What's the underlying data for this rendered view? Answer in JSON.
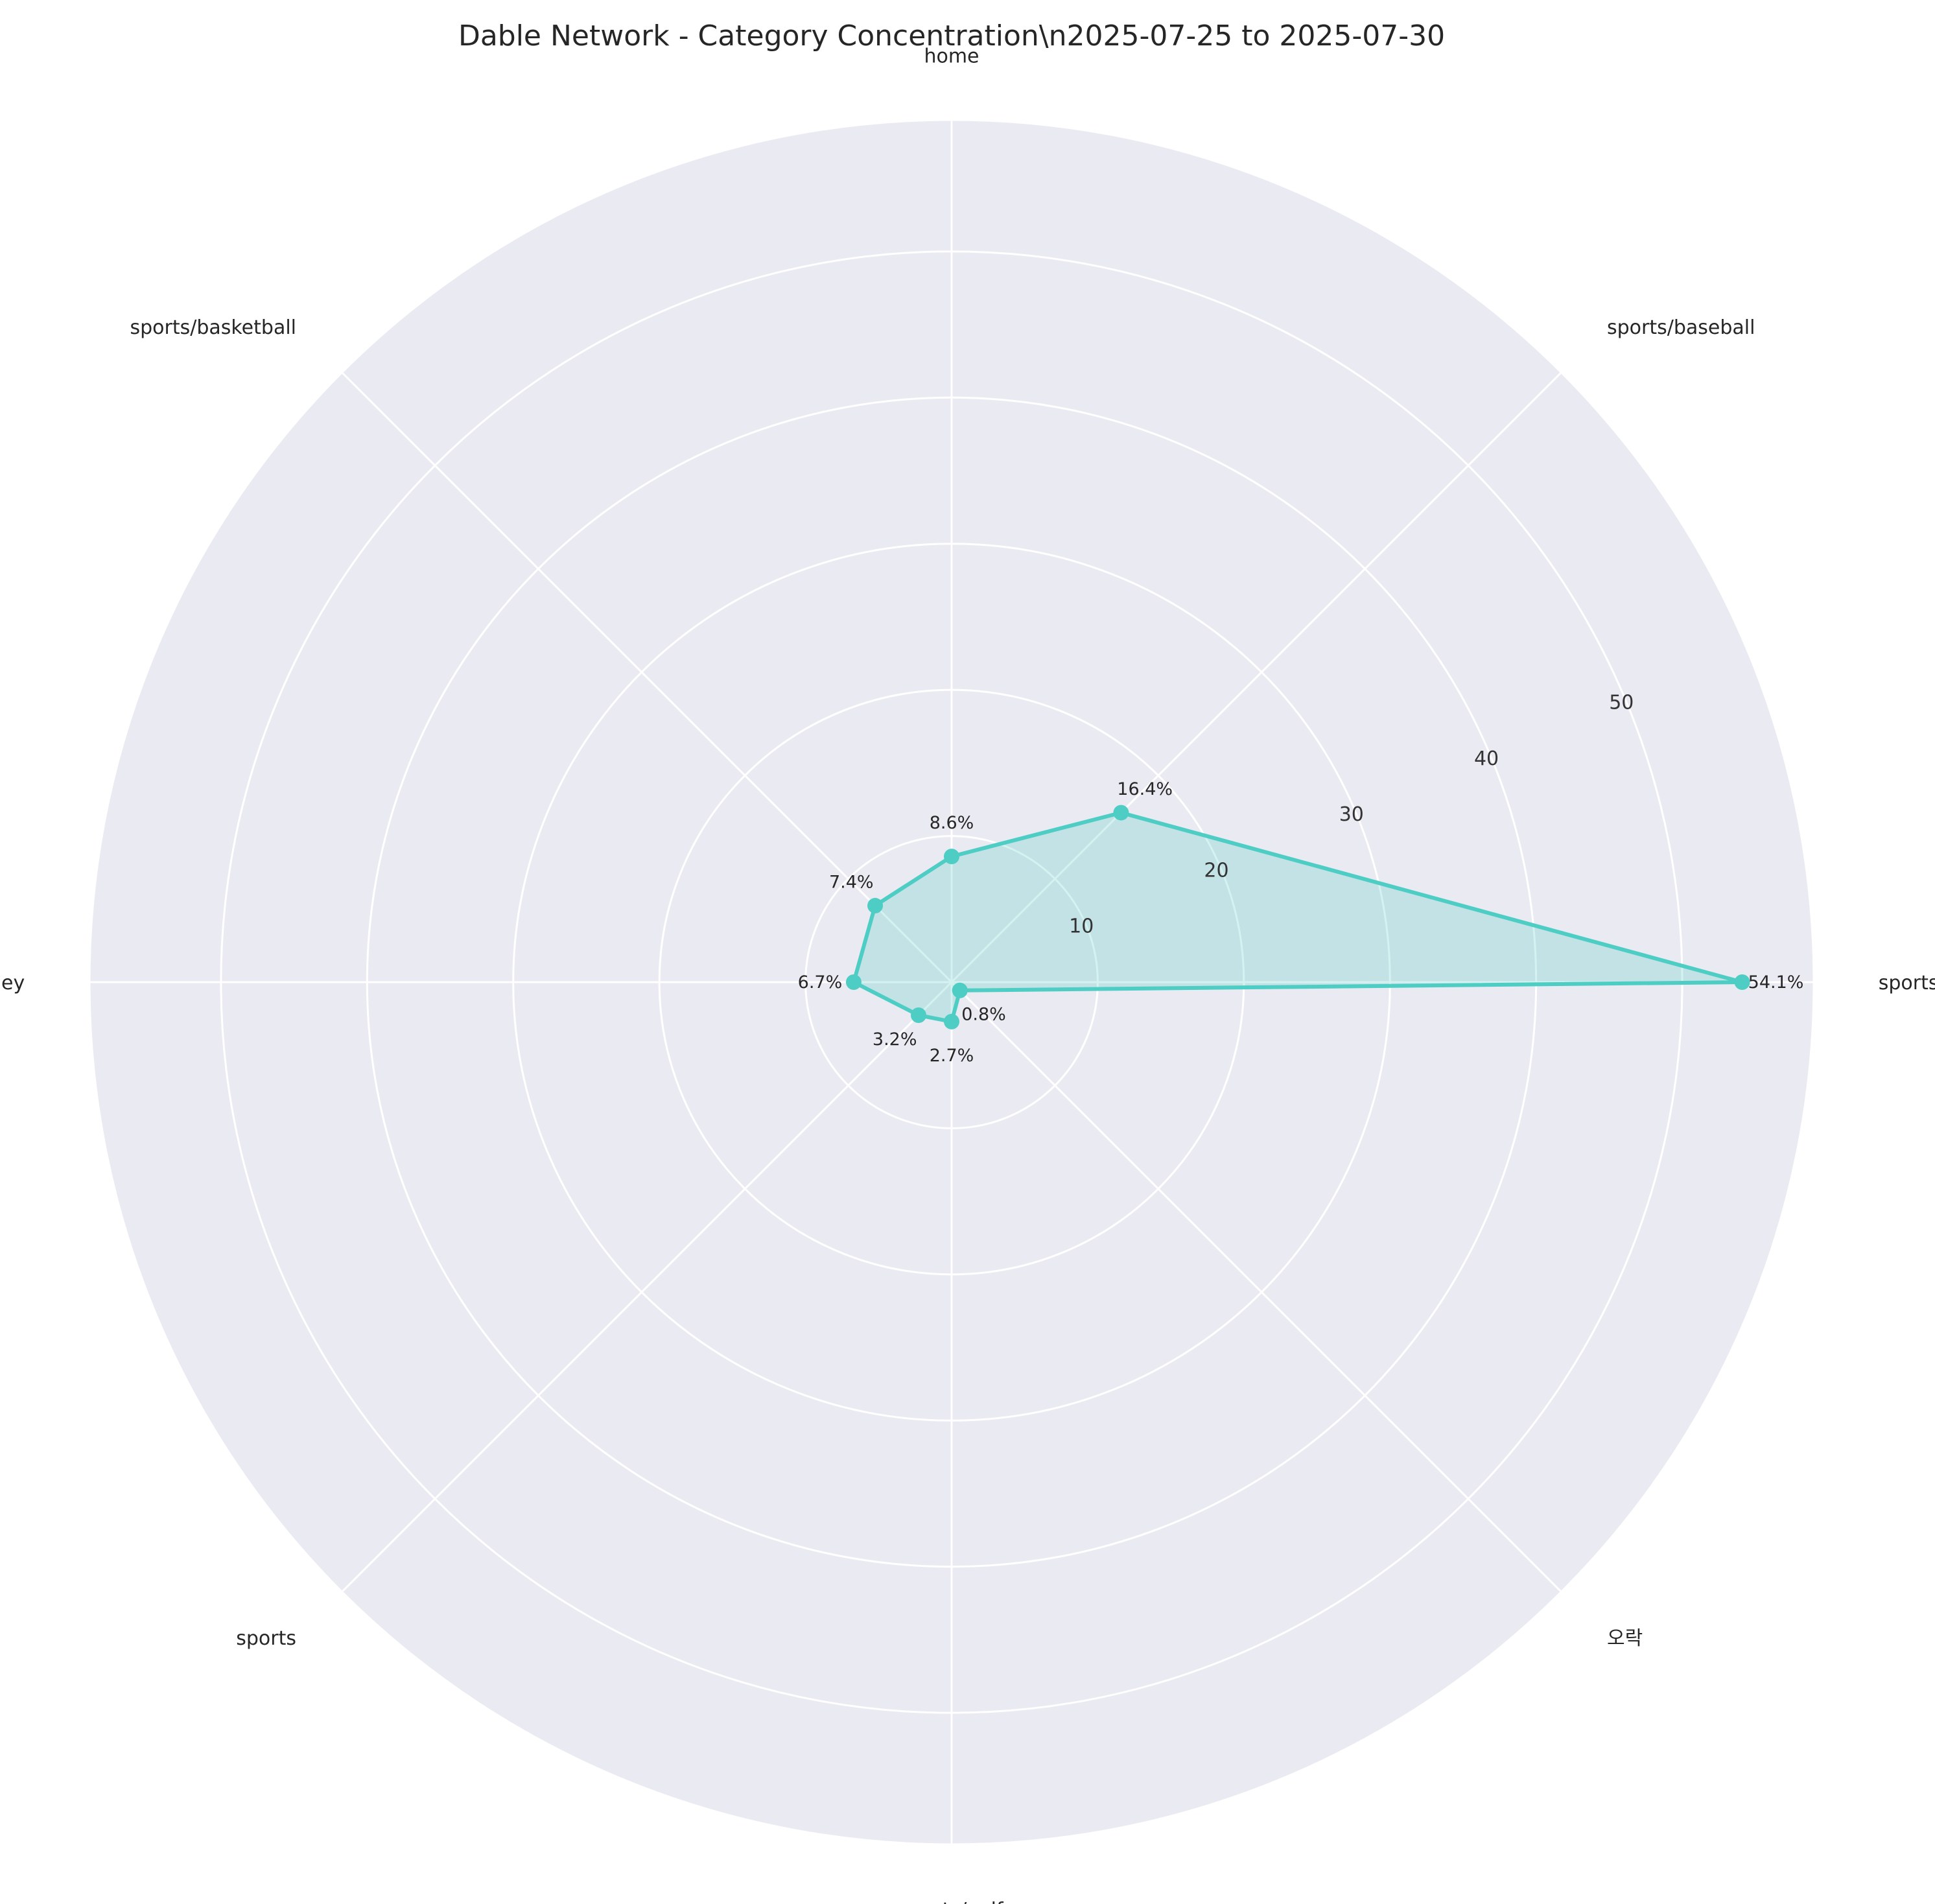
{
  "chart_data": {
    "type": "radar",
    "title": "Dable Network - Category Concentration\\n2025-07-25 to 2025-07-30",
    "categories": [
      "sports/soccer",
      "sports/baseball",
      "home",
      "sports/basketball",
      "money",
      "sports",
      "sports/golf",
      "오락"
    ],
    "series": [
      {
        "values": [
          54.1,
          16.4,
          8.6,
          7.4,
          6.7,
          3.2,
          2.7,
          0.8
        ],
        "labels": [
          "54.1%",
          "16.4%",
          "8.6%",
          "7.4%",
          "6.7%",
          "3.2%",
          "2.7%",
          "0.8%"
        ],
        "color": "#4ECDC4"
      }
    ],
    "rticks": [
      10,
      20,
      30,
      40,
      50
    ],
    "rlim": [
      0,
      59
    ],
    "grid": true,
    "background_color": "#EAEAF2"
  }
}
